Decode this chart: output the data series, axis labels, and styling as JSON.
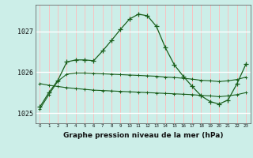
{
  "title": "Graphe pression niveau de la mer (hPa)",
  "bg_color": "#cceee8",
  "grid_color_v": "#ffbbbb",
  "grid_color_h": "#ffffff",
  "line_color": "#1a5e1a",
  "xlim": [
    -0.5,
    23.5
  ],
  "ylim": [
    1024.75,
    1027.65
  ],
  "yticks": [
    1025,
    1026,
    1027
  ],
  "xticks": [
    0,
    1,
    2,
    3,
    4,
    5,
    6,
    7,
    8,
    9,
    10,
    11,
    12,
    13,
    14,
    15,
    16,
    17,
    18,
    19,
    20,
    21,
    22,
    23
  ],
  "line1_y": [
    1025.15,
    1025.5,
    1025.8,
    1026.25,
    1026.3,
    1026.3,
    1026.28,
    1026.52,
    1026.78,
    1027.05,
    1027.3,
    1027.42,
    1027.38,
    1027.12,
    1026.6,
    1026.18,
    1025.9,
    1025.65,
    1025.42,
    1025.28,
    1025.22,
    1025.32,
    1025.72,
    1026.2
  ],
  "line2_y": [
    1025.72,
    1025.68,
    1025.65,
    1025.62,
    1025.6,
    1025.58,
    1025.56,
    1025.55,
    1025.54,
    1025.53,
    1025.52,
    1025.51,
    1025.5,
    1025.49,
    1025.48,
    1025.47,
    1025.46,
    1025.45,
    1025.43,
    1025.42,
    1025.4,
    1025.42,
    1025.45,
    1025.5
  ],
  "line3_y": [
    1025.1,
    1025.45,
    1025.78,
    1025.95,
    1025.98,
    1025.98,
    1025.97,
    1025.96,
    1025.95,
    1025.94,
    1025.93,
    1025.92,
    1025.91,
    1025.9,
    1025.88,
    1025.87,
    1025.85,
    1025.83,
    1025.8,
    1025.79,
    1025.77,
    1025.79,
    1025.82,
    1025.88
  ]
}
